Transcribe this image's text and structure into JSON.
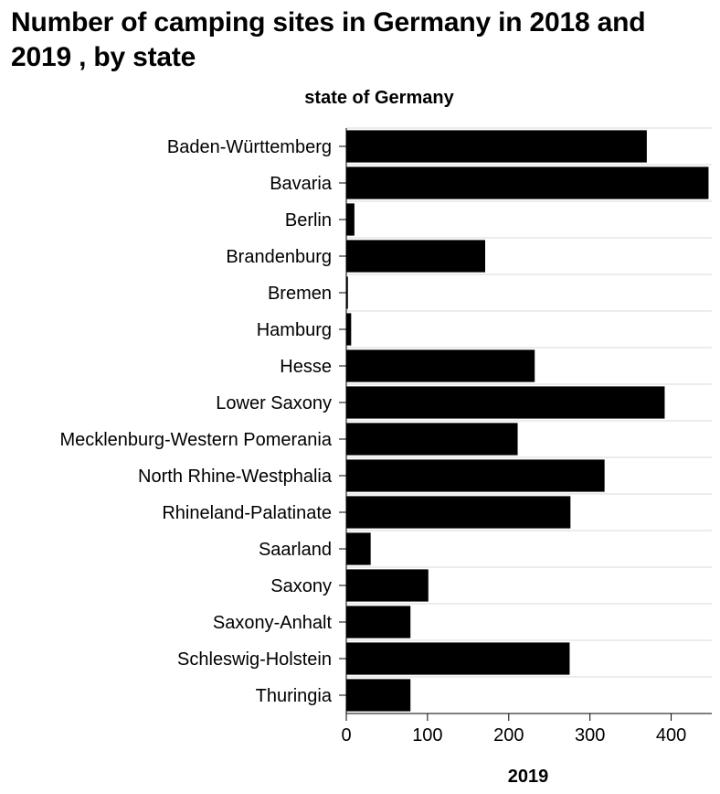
{
  "chart_data": {
    "type": "bar",
    "orientation": "horizontal",
    "title": "Number of camping sites in Germany in 2018 and 2019 , by state",
    "ylabel": "state of Germany",
    "xlabel": "2019",
    "categories": [
      "Baden-Württemberg",
      "Bavaria",
      "Berlin",
      "Brandenburg",
      "Bremen",
      "Hamburg",
      "Hesse",
      "Lower Saxony",
      "Mecklenburg-Western Pomerania",
      "North Rhine-Westphalia",
      "Rhineland-Palatinate",
      "Saarland",
      "Saxony",
      "Saxony-Anhalt",
      "Schleswig-Holstein",
      "Thuringia"
    ],
    "values": [
      370,
      446,
      10,
      171,
      2,
      6,
      232,
      392,
      211,
      318,
      276,
      30,
      101,
      79,
      275,
      79
    ],
    "xlim": [
      0,
      450
    ],
    "xticks": [
      0,
      100,
      200,
      300,
      400
    ],
    "grid": true,
    "bar_color": "#000000",
    "grid_color": "#d9d9d9"
  }
}
